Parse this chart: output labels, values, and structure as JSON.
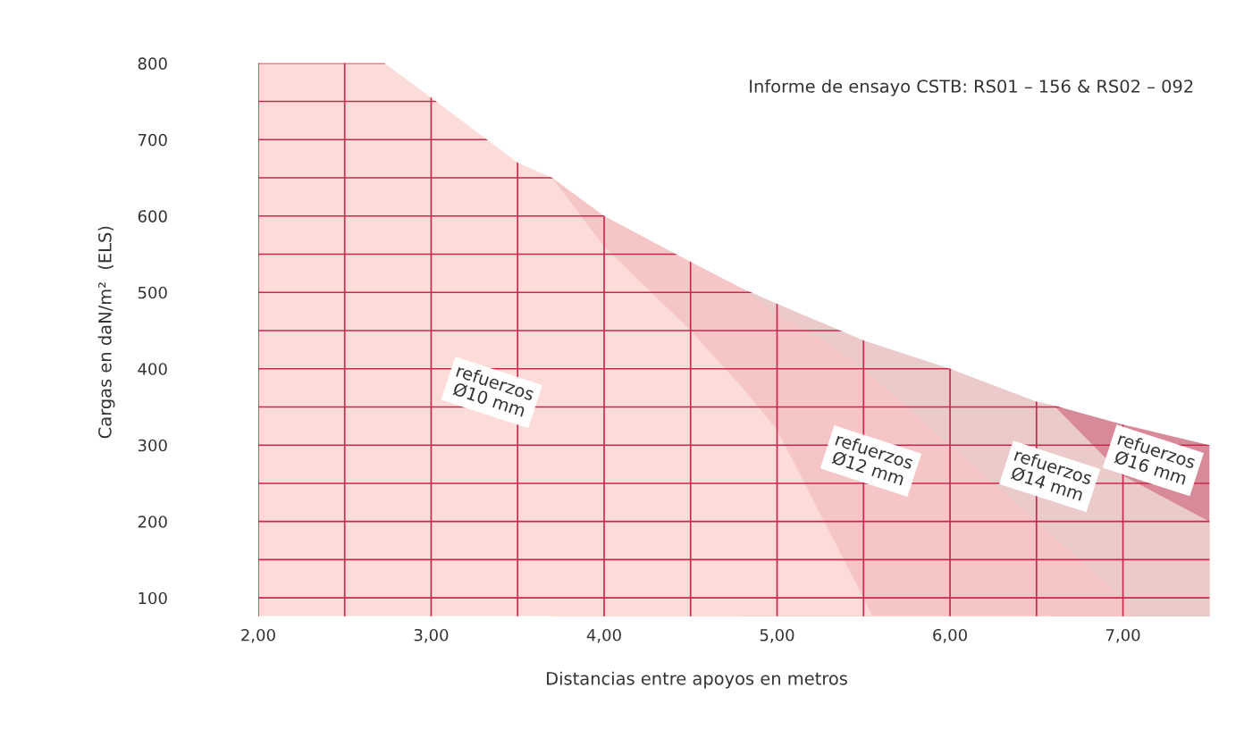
{
  "chart_data": {
    "type": "area",
    "xlabel": "Distancias entre apoyos en metros",
    "ylabel": "Cargas en daN/m²  (ELS)",
    "xlim": [
      1.55,
      7.52
    ],
    "ylim": [
      76,
      820
    ],
    "xticks": [
      {
        "value": 2,
        "label": "2,00"
      },
      {
        "value": 2.5,
        "label": null
      },
      {
        "value": 3,
        "label": "3,00"
      },
      {
        "value": 3.5,
        "label": null
      },
      {
        "value": 4,
        "label": "4,00"
      },
      {
        "value": 4.5,
        "label": null
      },
      {
        "value": 5,
        "label": "5,00"
      },
      {
        "value": 5.5,
        "label": null
      },
      {
        "value": 6,
        "label": "6,00"
      },
      {
        "value": 6.5,
        "label": null
      },
      {
        "value": 7,
        "label": "7,00"
      }
    ],
    "yticks": [
      100,
      {
        "value": 150,
        "label": null
      },
      200,
      {
        "value": 250,
        "label": null
      },
      300,
      {
        "value": 350,
        "label": null
      },
      400,
      {
        "value": 450,
        "label": null
      },
      500,
      {
        "value": 550,
        "label": null
      },
      600,
      {
        "value": 650,
        "label": null
      },
      700,
      {
        "value": 750,
        "label": null
      },
      800
    ],
    "grid": true,
    "series": [
      {
        "name": "refuerzos\nØ10 mm",
        "color": "#fbdcd8",
        "x": [
          2.0,
          2.73,
          3.0,
          3.5,
          3.7,
          4.0,
          4.5,
          4.8,
          5.0,
          5.25,
          5.5,
          5.55
        ],
        "values": [
          800,
          800,
          755,
          670,
          650,
          560,
          450,
          375,
          320,
          210,
          100,
          76
        ]
      },
      {
        "name": "refuerzos\nØ12 mm",
        "color": "#f6c6c6",
        "x": [
          3.7,
          4.0,
          4.5,
          4.8,
          5.0,
          5.25,
          5.5,
          6.0,
          6.5,
          7.0,
          7.05
        ],
        "values": [
          650,
          600,
          540,
          505,
          470,
          440,
          400,
          300,
          200,
          100,
          76
        ]
      },
      {
        "name": "refuerzos\nØ14 mm",
        "color": "#ebcaca",
        "x": [
          4.8,
          5.0,
          5.5,
          6.0,
          6.5,
          6.6,
          7.0,
          7.5
        ],
        "values": [
          505,
          485,
          437,
          400,
          357,
          352,
          260,
          200
        ]
      },
      {
        "name": "refuerzos\nØ16 mm",
        "color": "#d98a99",
        "x": [
          6.6,
          7.0,
          7.5
        ],
        "values": [
          352,
          327,
          300
        ]
      }
    ],
    "annotations": [
      "Informe de ensayo CSTB: RS01 – 156 & RS02 – 092"
    ]
  }
}
